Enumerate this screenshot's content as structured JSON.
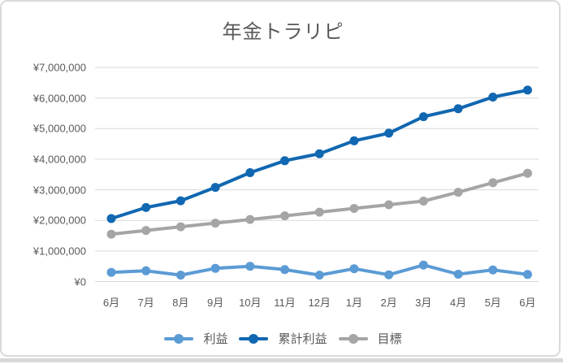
{
  "chart_data": {
    "type": "line",
    "title": "年金トラリピ",
    "categories": [
      "6月",
      "7月",
      "8月",
      "9月",
      "10月",
      "11月",
      "12月",
      "1月",
      "2月",
      "3月",
      "4月",
      "5月",
      "6月"
    ],
    "series": [
      {
        "name": "利益",
        "color": "#5B9BD5",
        "values": [
          300000,
          350000,
          210000,
          430000,
          500000,
          390000,
          210000,
          420000,
          220000,
          540000,
          240000,
          380000,
          230000
        ]
      },
      {
        "name": "累計利益",
        "color": "#1167B1",
        "values": [
          2060000,
          2420000,
          2640000,
          3080000,
          3560000,
          3950000,
          4180000,
          4600000,
          4850000,
          5390000,
          5650000,
          6030000,
          6260000
        ]
      },
      {
        "name": "目標",
        "color": "#A5A5A5",
        "values": [
          1550000,
          1670000,
          1790000,
          1910000,
          2030000,
          2150000,
          2270000,
          2390000,
          2510000,
          2630000,
          2920000,
          3230000,
          3540000
        ]
      }
    ],
    "y_axis": {
      "min": 0,
      "max": 7000000,
      "step": 1000000,
      "tick_labels": [
        "¥0",
        "¥1,000,000",
        "¥2,000,000",
        "¥3,000,000",
        "¥4,000,000",
        "¥5,000,000",
        "¥6,000,000",
        "¥7,000,000"
      ]
    },
    "grid": true,
    "legend_position": "bottom",
    "marker": "circle"
  },
  "colors": {
    "text": "#595959",
    "gridline": "#D9D9D9",
    "frame_border": "#D9D9D9",
    "bottom_strip": "#D9D9D9",
    "background": "#FFFFFF"
  }
}
